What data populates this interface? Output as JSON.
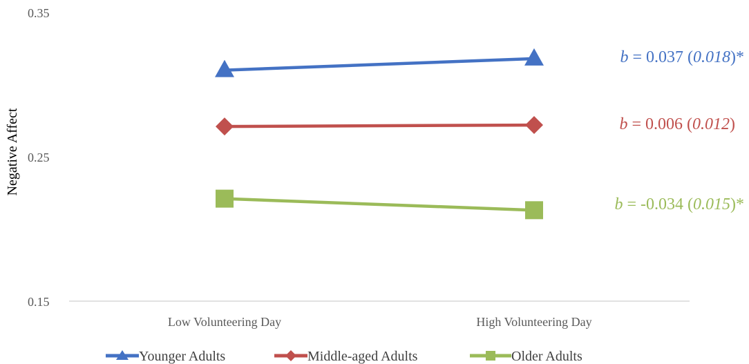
{
  "chart_data": {
    "type": "line",
    "categories": [
      "Low Volunteering Day",
      "High Volunteering Day"
    ],
    "ylabel": "Negative Affect",
    "xlabel": "",
    "ylim": [
      0.15,
      0.35
    ],
    "yticks": [
      "0.35",
      "0.25",
      "0.15"
    ],
    "grid": false,
    "legend_position": "bottom",
    "series": [
      {
        "name": "Younger Adults",
        "color": "#4472C4",
        "marker": "triangle",
        "values": [
          0.31,
          0.318
        ],
        "annotation": {
          "b_label": "b",
          "eq": " = ",
          "coef": "0.037",
          "open": " (",
          "se": "0.018",
          "close": ")*"
        }
      },
      {
        "name": "Middle-aged Adults",
        "color": "#C0504D",
        "marker": "diamond",
        "values": [
          0.271,
          0.272
        ],
        "annotation": {
          "b_label": "b",
          "eq": " = ",
          "coef": "0.006",
          "open": " (",
          "se": "0.012",
          "close": ")"
        }
      },
      {
        "name": "Older Adults",
        "color": "#9BBB59",
        "marker": "square",
        "values": [
          0.221,
          0.213
        ],
        "annotation": {
          "b_label": "b",
          "eq": " = ",
          "coef": "-0.034",
          "open": " (",
          "se": "0.015",
          "close": ")*"
        }
      }
    ]
  }
}
